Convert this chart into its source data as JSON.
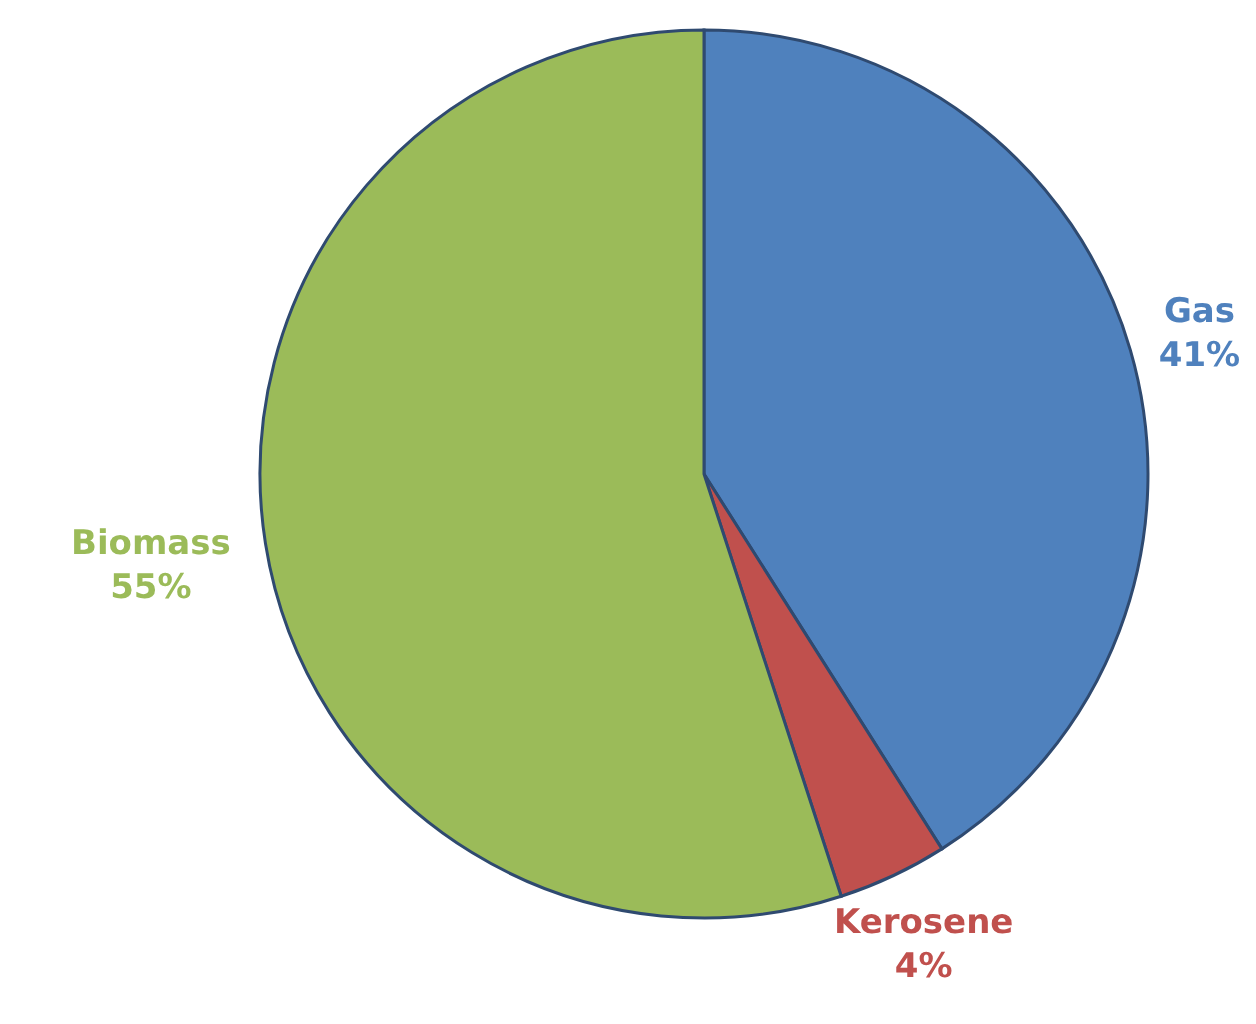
{
  "chart_data": {
    "type": "pie",
    "categories": [
      "Gas",
      "Kerosene",
      "Biomass"
    ],
    "values": [
      41,
      4,
      55
    ],
    "colors": [
      "#4f81bd",
      "#c0504d",
      "#9bbb59"
    ],
    "value_labels": [
      "41%",
      "4%",
      "55%"
    ]
  }
}
